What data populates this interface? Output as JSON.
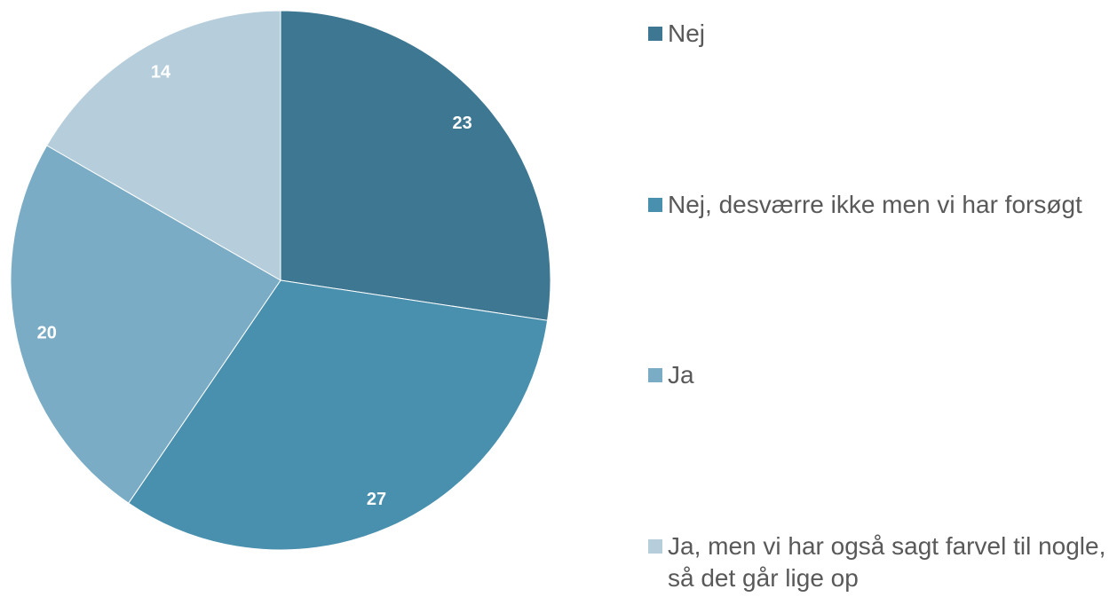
{
  "chart_data": {
    "type": "pie",
    "categories": [
      "Nej",
      "Nej, desværre ikke men vi har forsøgt",
      "Ja",
      "Ja, men vi har også sagt farvel til nogle, så det går lige op"
    ],
    "values": [
      23,
      27,
      20,
      14
    ],
    "colors": [
      "#3e7792",
      "#4890ae",
      "#7bacc5",
      "#b6cedb"
    ],
    "legend": "right"
  }
}
